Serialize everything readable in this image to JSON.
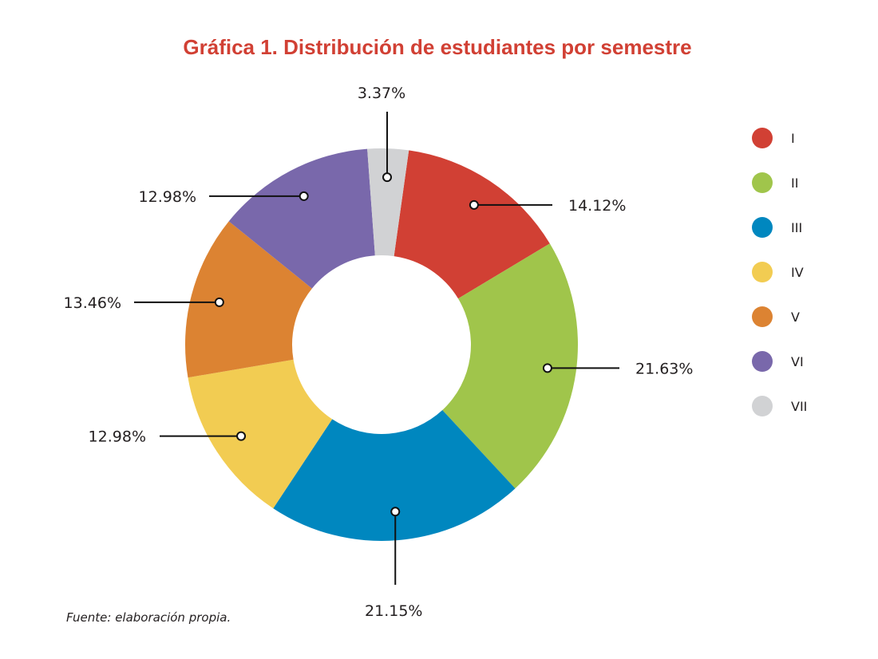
{
  "chart_data": {
    "type": "pie",
    "title": "Gráfica 1. Distribución de estudiantes por semestre",
    "title_color": "#d14034",
    "style": "donut",
    "categories": [
      "I",
      "II",
      "III",
      "IV",
      "V",
      "VI",
      "VII"
    ],
    "values": [
      14.12,
      21.63,
      21.15,
      12.98,
      13.46,
      12.98,
      3.37
    ],
    "labels": [
      "14.12%",
      "21.63%",
      "21.15%",
      "12.98%",
      "13.46%",
      "12.98%",
      "3.37%"
    ],
    "colors": [
      "#d14034",
      "#a0c54b",
      "#0087bf",
      "#f2cc52",
      "#dc8332",
      "#7968ab",
      "#d1d2d4"
    ],
    "legend_placement": "right"
  },
  "source_note": "Fuente: elaboración propia."
}
